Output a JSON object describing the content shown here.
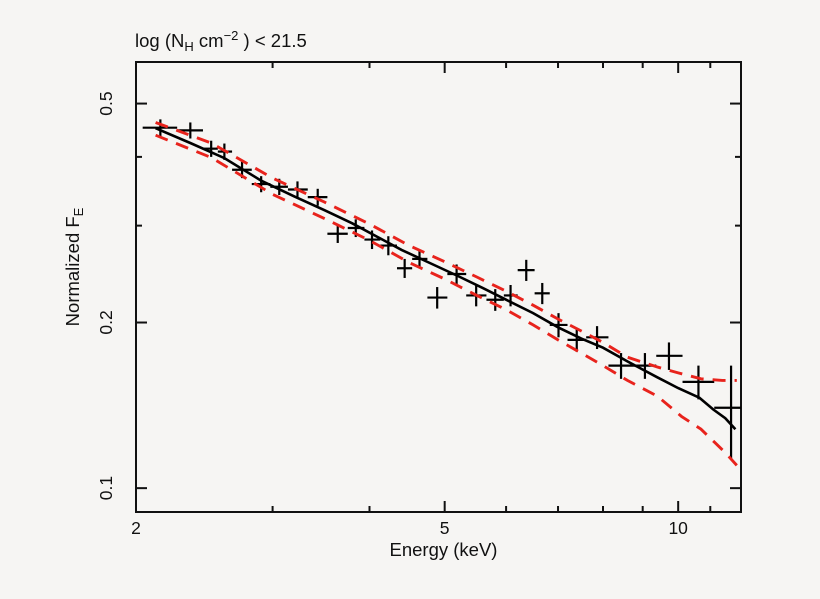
{
  "figure": {
    "background": "#f6f5f3"
  },
  "chart_data": {
    "type": "scatter",
    "title_parts": {
      "pre": "log (N",
      "sub": "H",
      "mid": " cm",
      "sup": "−2",
      "post": " ) < 21.5"
    },
    "xlabel": "Energy (keV)",
    "ylabel_parts": {
      "main": "Normalized F",
      "sub": "E"
    },
    "x_scale": "log",
    "y_scale": "log",
    "xlim": [
      2.0,
      12.05
    ],
    "ylim": [
      0.0905,
      0.595
    ],
    "grid": false,
    "legend": "none",
    "x_major_ticks": [
      {
        "value": 2,
        "label": "2"
      },
      {
        "value": 5,
        "label": "5"
      },
      {
        "value": 10,
        "label": "10"
      }
    ],
    "x_minor_ticks": [
      3,
      4,
      6,
      7,
      8,
      9,
      11
    ],
    "y_major_ticks": [
      {
        "value": 0.5,
        "label": "0.5"
      },
      {
        "value": 0.2,
        "label": "0.2"
      },
      {
        "value": 0.1,
        "label": "0.1"
      }
    ],
    "y_minor_ticks": [
      0.3,
      0.4
    ],
    "colors": {
      "axis": "#111111",
      "text": "#111111",
      "data": "#000000",
      "model": "#000000",
      "band": "#e8231c"
    },
    "points": [
      {
        "e": 2.15,
        "e_lo": 2.04,
        "e_hi": 2.26,
        "f": 0.452,
        "ferr": 0.016
      },
      {
        "e": 2.35,
        "e_lo": 2.26,
        "e_hi": 2.44,
        "f": 0.447,
        "ferr": 0.015
      },
      {
        "e": 2.5,
        "e_lo": 2.44,
        "e_hi": 2.55,
        "f": 0.414,
        "ferr": 0.014
      },
      {
        "e": 2.6,
        "e_lo": 2.55,
        "e_hi": 2.66,
        "f": 0.409,
        "ferr": 0.014
      },
      {
        "e": 2.74,
        "e_lo": 2.66,
        "e_hi": 2.82,
        "f": 0.379,
        "ferr": 0.013
      },
      {
        "e": 2.9,
        "e_lo": 2.82,
        "e_hi": 2.98,
        "f": 0.357,
        "ferr": 0.012
      },
      {
        "e": 3.06,
        "e_lo": 2.98,
        "e_hi": 3.14,
        "f": 0.353,
        "ferr": 0.012
      },
      {
        "e": 3.23,
        "e_lo": 3.14,
        "e_hi": 3.33,
        "f": 0.349,
        "ferr": 0.012
      },
      {
        "e": 3.43,
        "e_lo": 3.33,
        "e_hi": 3.53,
        "f": 0.338,
        "ferr": 0.012
      },
      {
        "e": 3.64,
        "e_lo": 3.53,
        "e_hi": 3.75,
        "f": 0.29,
        "ferr": 0.011
      },
      {
        "e": 3.84,
        "e_lo": 3.75,
        "e_hi": 3.94,
        "f": 0.297,
        "ferr": 0.011
      },
      {
        "e": 4.03,
        "e_lo": 3.94,
        "e_hi": 4.13,
        "f": 0.283,
        "ferr": 0.011
      },
      {
        "e": 4.23,
        "e_lo": 4.13,
        "e_hi": 4.34,
        "f": 0.276,
        "ferr": 0.011
      },
      {
        "e": 4.44,
        "e_lo": 4.34,
        "e_hi": 4.54,
        "f": 0.251,
        "ferr": 0.01
      },
      {
        "e": 4.64,
        "e_lo": 4.54,
        "e_hi": 4.75,
        "f": 0.261,
        "ferr": 0.01
      },
      {
        "e": 4.89,
        "e_lo": 4.75,
        "e_hi": 5.04,
        "f": 0.222,
        "ferr": 0.01
      },
      {
        "e": 5.18,
        "e_lo": 5.04,
        "e_hi": 5.33,
        "f": 0.245,
        "ferr": 0.01
      },
      {
        "e": 5.49,
        "e_lo": 5.33,
        "e_hi": 5.66,
        "f": 0.224,
        "ferr": 0.01
      },
      {
        "e": 5.81,
        "e_lo": 5.66,
        "e_hi": 5.96,
        "f": 0.22,
        "ferr": 0.01
      },
      {
        "e": 6.08,
        "e_lo": 5.96,
        "e_hi": 6.21,
        "f": 0.224,
        "ferr": 0.01
      },
      {
        "e": 6.37,
        "e_lo": 6.21,
        "e_hi": 6.53,
        "f": 0.249,
        "ferr": 0.011
      },
      {
        "e": 6.68,
        "e_lo": 6.53,
        "e_hi": 6.83,
        "f": 0.226,
        "ferr": 0.01
      },
      {
        "e": 7.01,
        "e_lo": 6.83,
        "e_hi": 7.2,
        "f": 0.198,
        "ferr": 0.01
      },
      {
        "e": 7.4,
        "e_lo": 7.2,
        "e_hi": 7.61,
        "f": 0.186,
        "ferr": 0.009
      },
      {
        "e": 7.86,
        "e_lo": 7.61,
        "e_hi": 8.13,
        "f": 0.188,
        "ferr": 0.009
      },
      {
        "e": 8.44,
        "e_lo": 8.13,
        "e_hi": 8.77,
        "f": 0.167,
        "ferr": 0.009
      },
      {
        "e": 9.06,
        "e_lo": 8.77,
        "e_hi": 9.37,
        "f": 0.167,
        "ferr": 0.009
      },
      {
        "e": 9.73,
        "e_lo": 9.37,
        "e_hi": 10.13,
        "f": 0.174,
        "ferr": 0.01
      },
      {
        "e": 10.62,
        "e_lo": 10.13,
        "e_hi": 11.13,
        "f": 0.156,
        "ferr": 0.011
      },
      {
        "e": 11.7,
        "e_lo": 11.13,
        "e_hi": 12.05,
        "f": 0.14,
        "ferr": 0.027
      }
    ],
    "model": [
      [
        2.12,
        0.451
      ],
      [
        2.35,
        0.424
      ],
      [
        2.6,
        0.398
      ],
      [
        2.9,
        0.362
      ],
      [
        3.2,
        0.339
      ],
      [
        3.5,
        0.32
      ],
      [
        3.8,
        0.303
      ],
      [
        4.1,
        0.286
      ],
      [
        4.4,
        0.271
      ],
      [
        4.8,
        0.256
      ],
      [
        5.2,
        0.243
      ],
      [
        5.6,
        0.231
      ],
      [
        6.0,
        0.22
      ],
      [
        6.5,
        0.208
      ],
      [
        7.0,
        0.196
      ],
      [
        7.5,
        0.187
      ],
      [
        8.0,
        0.18
      ],
      [
        8.6,
        0.17
      ],
      [
        9.4,
        0.159
      ],
      [
        10.0,
        0.152
      ],
      [
        10.65,
        0.146
      ],
      [
        11.1,
        0.139
      ],
      [
        11.5,
        0.134
      ],
      [
        11.85,
        0.128
      ]
    ],
    "band_upper": [
      [
        2.12,
        0.462
      ],
      [
        2.5,
        0.424
      ],
      [
        3.0,
        0.366
      ],
      [
        3.5,
        0.331
      ],
      [
        4.0,
        0.302
      ],
      [
        4.5,
        0.276
      ],
      [
        5.0,
        0.258
      ],
      [
        5.5,
        0.242
      ],
      [
        6.0,
        0.228
      ],
      [
        6.5,
        0.215
      ],
      [
        7.0,
        0.203
      ],
      [
        7.5,
        0.193
      ],
      [
        8.0,
        0.184
      ],
      [
        8.6,
        0.173
      ],
      [
        9.4,
        0.166
      ],
      [
        10.0,
        0.162
      ],
      [
        10.7,
        0.158
      ],
      [
        11.4,
        0.157
      ],
      [
        11.9,
        0.157
      ]
    ],
    "band_lower": [
      [
        2.12,
        0.438
      ],
      [
        2.5,
        0.399
      ],
      [
        3.0,
        0.342
      ],
      [
        3.5,
        0.309
      ],
      [
        4.0,
        0.282
      ],
      [
        4.5,
        0.257
      ],
      [
        5.0,
        0.24
      ],
      [
        5.5,
        0.224
      ],
      [
        6.0,
        0.211
      ],
      [
        6.5,
        0.198
      ],
      [
        7.0,
        0.186
      ],
      [
        7.5,
        0.176
      ],
      [
        8.0,
        0.167
      ],
      [
        8.6,
        0.157
      ],
      [
        9.4,
        0.147
      ],
      [
        10.1,
        0.135
      ],
      [
        10.7,
        0.128
      ],
      [
        11.15,
        0.121
      ],
      [
        11.5,
        0.116
      ],
      [
        11.9,
        0.11
      ]
    ]
  }
}
